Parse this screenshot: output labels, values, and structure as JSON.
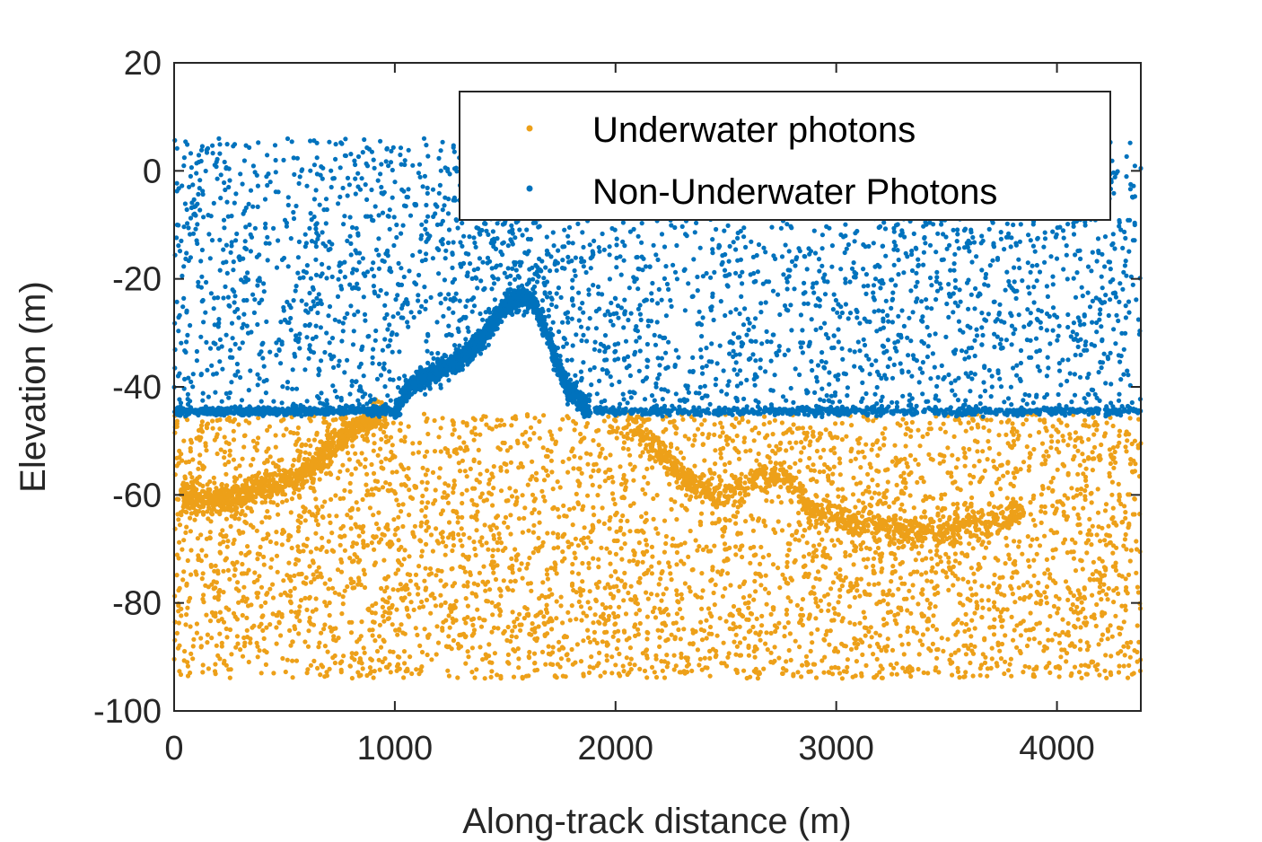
{
  "chart_data": {
    "type": "scatter",
    "title": "",
    "xlabel": "Along-track distance (m)",
    "ylabel": "Elevation (m)",
    "xlim": [
      0,
      4380
    ],
    "ylim": [
      -100,
      20
    ],
    "xticks": [
      0,
      1000,
      2000,
      3000,
      4000
    ],
    "yticks": [
      -100,
      -80,
      -60,
      -40,
      -20,
      0,
      20
    ],
    "grid": false,
    "legend_position": "top-right",
    "water_surface_elevation": -44.5,
    "series": [
      {
        "name": "Underwater photons",
        "color": "#EDA019",
        "noise_y_range": [
          -94,
          -45
        ],
        "seabed_profile": [
          {
            "x": 30,
            "y": -60
          },
          {
            "x": 150,
            "y": -61
          },
          {
            "x": 300,
            "y": -60
          },
          {
            "x": 450,
            "y": -58
          },
          {
            "x": 560,
            "y": -57
          },
          {
            "x": 650,
            "y": -54
          },
          {
            "x": 750,
            "y": -50
          },
          {
            "x": 850,
            "y": -47
          },
          {
            "x": 960,
            "y": -45
          },
          {
            "x": 2050,
            "y": -46
          },
          {
            "x": 2150,
            "y": -49
          },
          {
            "x": 2250,
            "y": -54
          },
          {
            "x": 2350,
            "y": -58
          },
          {
            "x": 2500,
            "y": -60
          },
          {
            "x": 2650,
            "y": -57
          },
          {
            "x": 2800,
            "y": -57
          },
          {
            "x": 2880,
            "y": -63
          },
          {
            "x": 3000,
            "y": -64
          },
          {
            "x": 3200,
            "y": -66
          },
          {
            "x": 3400,
            "y": -67
          },
          {
            "x": 3600,
            "y": -66
          },
          {
            "x": 3750,
            "y": -65
          },
          {
            "x": 3850,
            "y": -63
          }
        ]
      },
      {
        "name": "Non-Underwater Photons",
        "color": "#0072BD",
        "noise_y_range": [
          -44,
          6
        ],
        "surface_profile": [
          {
            "x": 0,
            "y": -44.5
          },
          {
            "x": 1000,
            "y": -44.5
          },
          {
            "x": 1050,
            "y": -41
          },
          {
            "x": 1100,
            "y": -39
          },
          {
            "x": 1200,
            "y": -37
          },
          {
            "x": 1300,
            "y": -35
          },
          {
            "x": 1380,
            "y": -32
          },
          {
            "x": 1450,
            "y": -28
          },
          {
            "x": 1500,
            "y": -25
          },
          {
            "x": 1560,
            "y": -23.5
          },
          {
            "x": 1620,
            "y": -24
          },
          {
            "x": 1680,
            "y": -29
          },
          {
            "x": 1730,
            "y": -35
          },
          {
            "x": 1780,
            "y": -40
          },
          {
            "x": 1830,
            "y": -42
          },
          {
            "x": 1880,
            "y": -44.5
          },
          {
            "x": 4380,
            "y": -44.5
          }
        ]
      }
    ]
  }
}
